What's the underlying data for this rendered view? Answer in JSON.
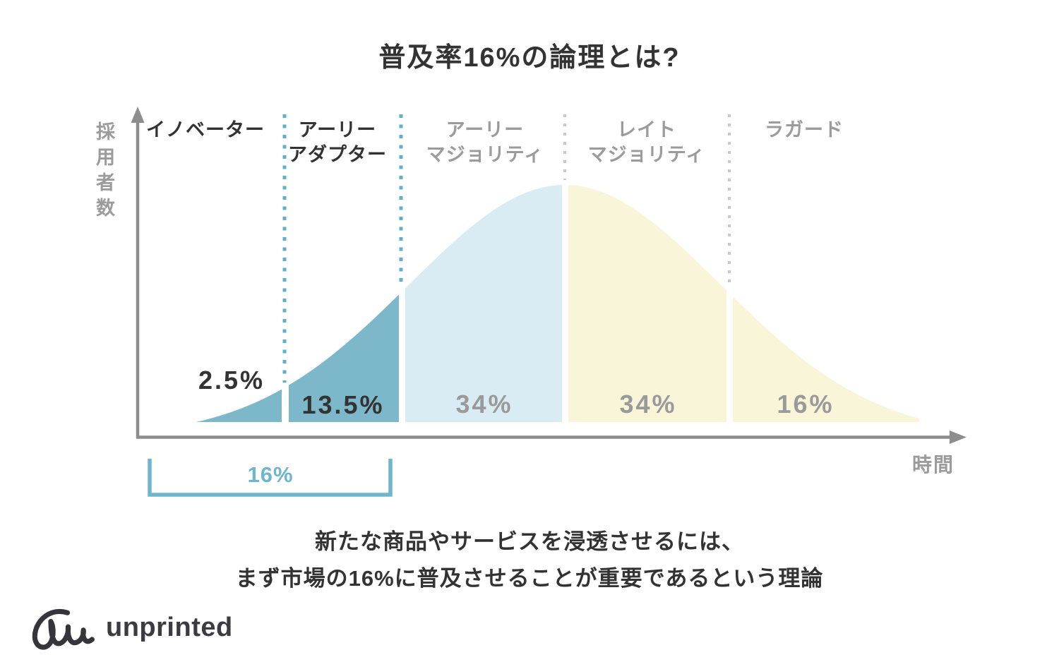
{
  "title": "普及率16%の論理とは?",
  "chart_data": {
    "type": "area",
    "subtype": "bell-curve-diffusion-of-innovation",
    "title": "普及率16%の論理とは?",
    "xlabel": "時間",
    "ylabel": "採用者数",
    "grid": false,
    "legend": "none",
    "categories": [
      "イノベーター",
      "アーリーアダプター",
      "アーリーマジョリティ",
      "レイトマジョリティ",
      "ラガード"
    ],
    "values_percent": [
      2.5,
      13.5,
      34,
      34,
      16
    ],
    "segments": [
      {
        "label_line1": "イノベーター",
        "label_line2": "",
        "value_label": "2.5%",
        "fill": "#7db8ca",
        "emphasized": true
      },
      {
        "label_line1": "アーリー",
        "label_line2": "アダプター",
        "value_label": "13.5%",
        "fill": "#7db8ca",
        "emphasized": true
      },
      {
        "label_line1": "アーリー",
        "label_line2": "マジョリティ",
        "value_label": "34%",
        "fill": "#d9ecf4",
        "emphasized": false
      },
      {
        "label_line1": "レイト",
        "label_line2": "マジョリティ",
        "value_label": "34%",
        "fill": "#f8f5d8",
        "emphasized": false
      },
      {
        "label_line1": "ラガード",
        "label_line2": "",
        "value_label": "16%",
        "fill": "#f8f5d8",
        "emphasized": false
      }
    ],
    "bracket_annotation": {
      "label": "16%"
    }
  },
  "footer": {
    "line1": "新たな商品やサービスを浸透させるには、",
    "line2": "まず市場の16%に普及させることが重要であるという理論"
  },
  "logo": {
    "text": "unprinted"
  },
  "colors": {
    "dark_text": "#333333",
    "gray_text": "#9b9b9b",
    "axis": "#8d8d8d",
    "segment_teal": "#7db8ca",
    "segment_light_blue": "#d9ecf4",
    "segment_light_yellow": "#f8f5d8",
    "dotted_line_blue": "#5fb0c8",
    "dotted_line_gray": "#c9c9c9",
    "bracket_teal": "#6fb5cc",
    "background": "#ffffff"
  }
}
